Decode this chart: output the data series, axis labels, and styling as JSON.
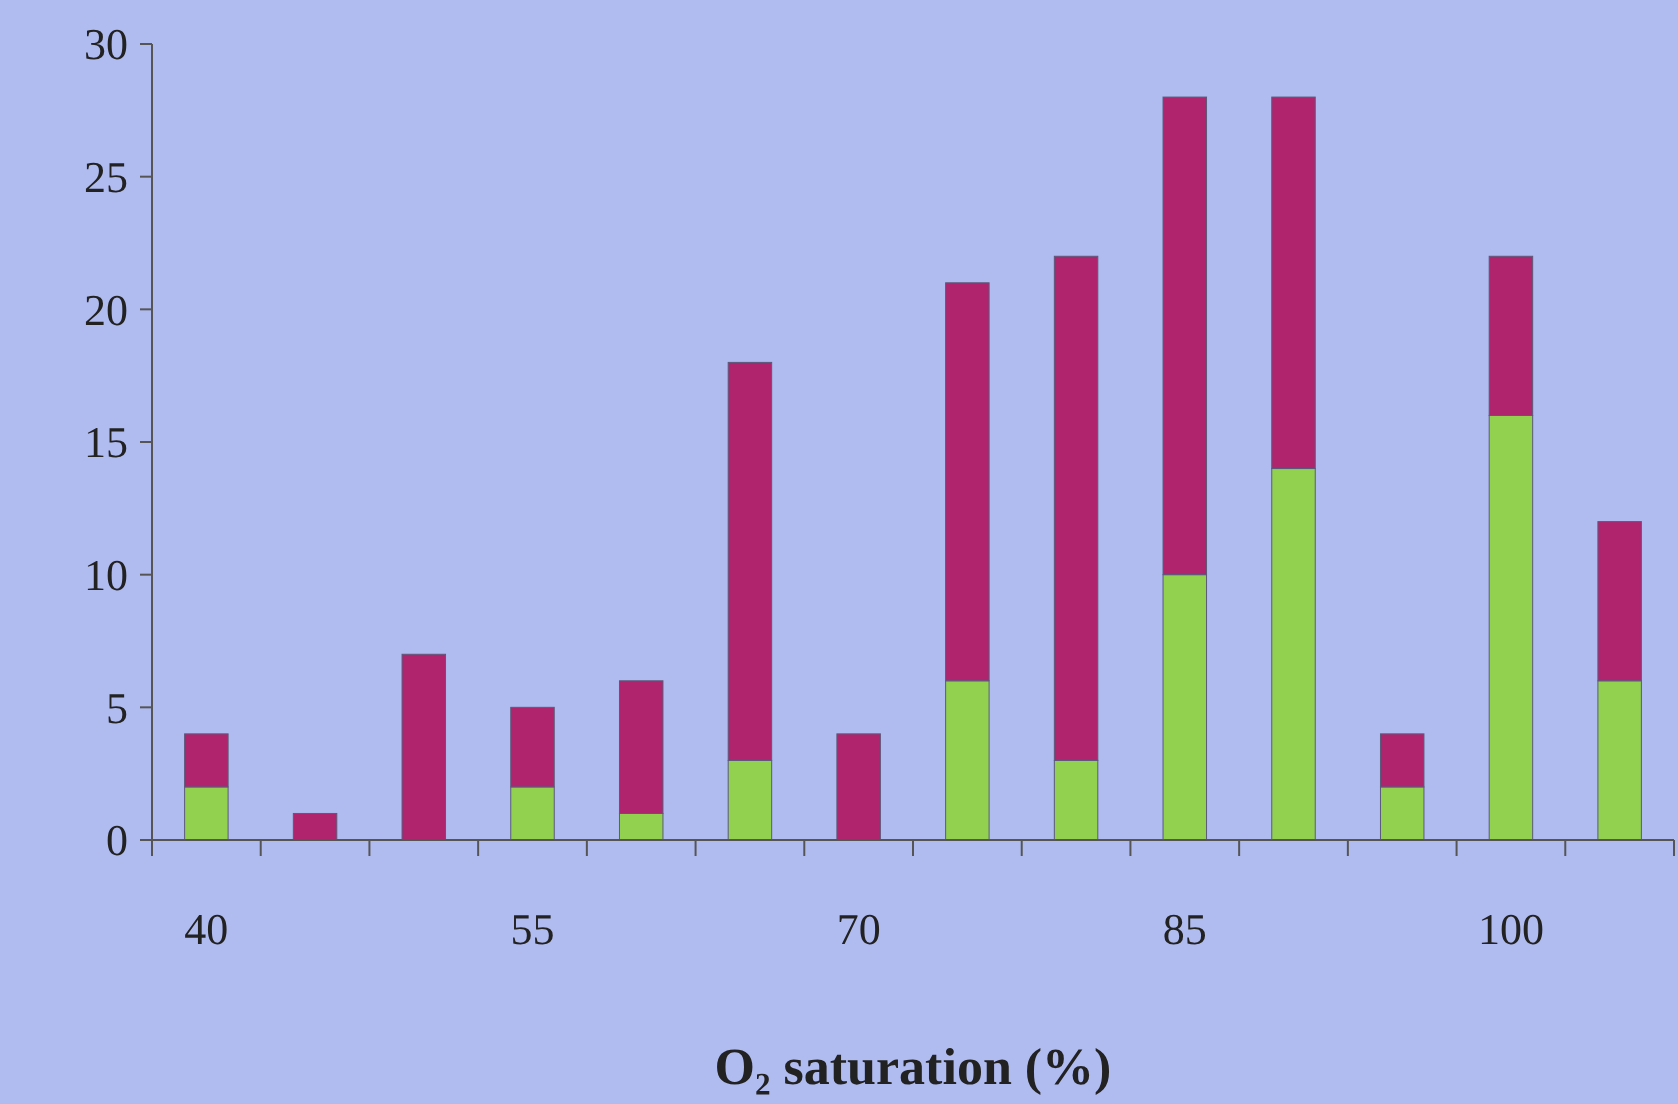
{
  "chart_data": {
    "type": "bar",
    "xlabel": "O₂ saturation (%)",
    "categories": [
      "40",
      null,
      null,
      "55",
      null,
      null,
      "70",
      null,
      null,
      "85",
      null,
      null,
      "100",
      null
    ],
    "stacked": true,
    "ylim": [
      0,
      30
    ],
    "yticks": [
      0,
      5,
      10,
      15,
      20,
      25,
      30
    ],
    "series": [
      {
        "color": "#92d050",
        "values": [
          2,
          0,
          0,
          2,
          1,
          3,
          0,
          6,
          3,
          10,
          14,
          2,
          16,
          6
        ]
      },
      {
        "color": "#b0246e",
        "values": [
          2,
          1,
          7,
          3,
          5,
          15,
          4,
          15,
          19,
          18,
          14,
          2,
          6,
          6
        ]
      }
    ]
  }
}
